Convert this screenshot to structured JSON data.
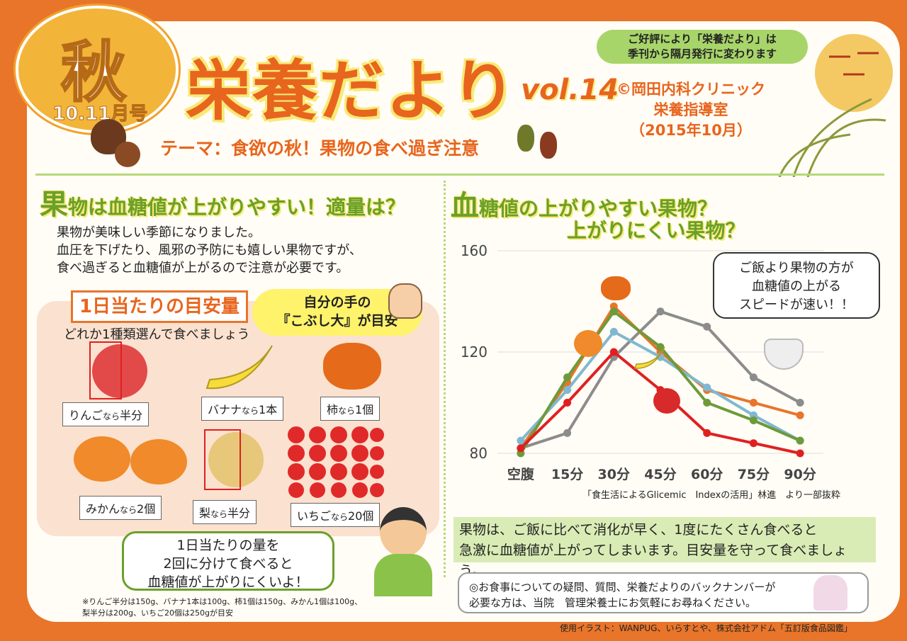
{
  "header": {
    "season": "秋",
    "issue": "10.11月号",
    "title": "栄養だより",
    "vol_prefix": "vol.",
    "vol_number": "14",
    "clinic_line1": "©岡田内科クリニック",
    "clinic_line2": "栄養指導室",
    "clinic_line3": "（2015年10月）",
    "notice_line1": "ご好評により「栄養だより」は",
    "notice_line2": "季刊から隔月発行に変わります",
    "theme": "テーマ：食欲の秋！果物の食べ過ぎ注意"
  },
  "left": {
    "heading_big": "果",
    "heading_rest": "物は血糖値が上がりやすい！適量は？",
    "intro_line1": "果物が美味しい季節になりました。",
    "intro_line2": "血圧を下げたり、風邪の予防にも嬉しい果物ですが、",
    "intro_line3": "食べ過ぎると血糖値が上がるので注意が必要です。",
    "tag": "1日当たりの目安量",
    "bubble_line1": "自分の手の",
    "bubble_line2": "『こぶし大』が目安",
    "instruction": "どれか1種類選んで食べましょう",
    "fruits": [
      {
        "name": "りんご",
        "small": "なら",
        "amount": "半分"
      },
      {
        "name": "バナナ",
        "small": "なら",
        "amount": "1本"
      },
      {
        "name": "柿",
        "small": "なら",
        "amount": "1個"
      },
      {
        "name": "みかん",
        "small": "なら",
        "amount": "2個"
      },
      {
        "name": "梨",
        "small": "なら",
        "amount": "半分"
      },
      {
        "name": "いちご",
        "small": "なら",
        "amount": "20個"
      }
    ],
    "speech_line1": "1日当たりの量を",
    "speech_line2": "2回に分けて食べると",
    "speech_line3": "血糖値が上がりにくいよ！",
    "footnote_line1": "※りんご半分は150g、バナナ1本は100g、柿1個は150g、みかん1個は100g、",
    "footnote_line2": "梨半分は200g、いちご20個は250gが目安"
  },
  "right": {
    "heading_big": "血",
    "heading_rest": "糖値の上がりやすい果物？",
    "heading_line2": "上がりにくい果物？",
    "bubble_line1": "ご飯より果物の方が",
    "bubble_line2": "血糖値の上がる",
    "bubble_line3": "スピードが速い！！",
    "source": "「食生活によるGlicemic　Indexの活用」林進　より一部抜粋",
    "note_line1": "果物は、ご飯に比べて消化が早く、1度にたくさん食べると",
    "note_line2": "急激に血糖値が上がってしまいます。目安量を守って食べましょう。",
    "contact_line1": "◎お食事についての疑問、質問、栄養だよりのバックナンバーが",
    "contact_line2": "必要な方は、当院　管理栄養士にお気軽にお尋ねください。"
  },
  "credit": "使用イラスト：WANPUG、いらすとや、株式会社アドム「五訂版食品図鑑」",
  "chart_data": {
    "type": "line",
    "categories": [
      "空腹",
      "15分",
      "30分",
      "45分",
      "60分",
      "75分",
      "90分"
    ],
    "ylim": [
      80,
      160
    ],
    "yticks": [
      80,
      120,
      160
    ],
    "grid": true,
    "series": [
      {
        "color": "#8c8c8c",
        "values": [
          82,
          88,
          118,
          136,
          130,
          110,
          100
        ]
      },
      {
        "color": "#e8752a",
        "values": [
          82,
          108,
          138,
          120,
          105,
          100,
          95
        ]
      },
      {
        "color": "#7fb8d0",
        "values": [
          85,
          105,
          128,
          118,
          106,
          95,
          85
        ]
      },
      {
        "color": "#6e9a3a",
        "values": [
          80,
          110,
          136,
          122,
          100,
          93,
          85
        ]
      },
      {
        "color": "#e02020",
        "values": [
          82,
          100,
          120,
          105,
          88,
          84,
          80
        ]
      }
    ]
  }
}
